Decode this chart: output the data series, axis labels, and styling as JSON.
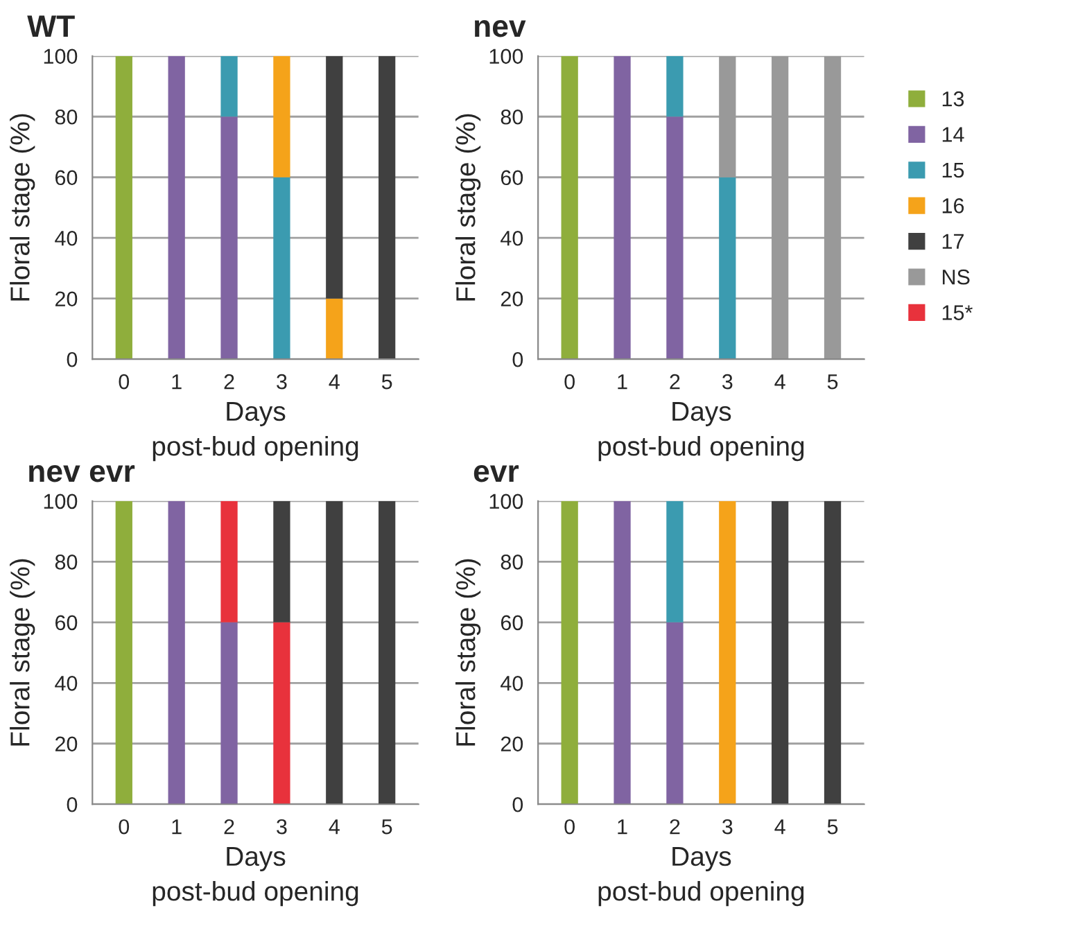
{
  "chart_data": [
    {
      "type": "bar",
      "title": "WT",
      "xlabel": "Days\npost-bud opening",
      "ylabel": "Floral stage (%)",
      "categories": [
        "0",
        "1",
        "2",
        "3",
        "4",
        "5"
      ],
      "stacked": true,
      "ylim": [
        0,
        100
      ],
      "yticks": [
        0,
        20,
        40,
        60,
        80,
        100
      ],
      "grid": "y",
      "legend": false,
      "series": [
        {
          "color": "#8fae3c",
          "values": [
            100,
            null,
            null,
            null,
            null,
            null
          ]
        },
        {
          "color": "#8064a2",
          "values": [
            null,
            100,
            80,
            null,
            null,
            null
          ]
        },
        {
          "color": "#3b9bb0",
          "values": [
            null,
            null,
            20,
            60,
            null,
            null
          ]
        },
        {
          "color": "#f5a31a",
          "values": [
            null,
            null,
            null,
            40,
            20,
            null
          ]
        },
        {
          "color": "#404040",
          "values": [
            null,
            null,
            null,
            null,
            80,
            100
          ]
        }
      ]
    },
    {
      "type": "bar",
      "title": "nev",
      "xlabel": "Days\npost-bud opening",
      "ylabel": "Floral stage (%)",
      "categories": [
        "0",
        "1",
        "2",
        "3",
        "4",
        "5"
      ],
      "stacked": true,
      "ylim": [
        0,
        100
      ],
      "yticks": [
        0,
        20,
        40,
        60,
        80,
        100
      ],
      "grid": "y",
      "legend": "right",
      "series": [
        {
          "name": "13",
          "color": "#8fae3c",
          "values": [
            100,
            null,
            null,
            null,
            null,
            null
          ]
        },
        {
          "name": "14",
          "color": "#8064a2",
          "values": [
            null,
            100,
            80,
            null,
            null,
            null
          ]
        },
        {
          "name": "15",
          "color": "#3b9bb0",
          "values": [
            null,
            null,
            20,
            60,
            null,
            null
          ]
        },
        {
          "name": "16",
          "color": "#f5a31a",
          "values": [
            null,
            null,
            null,
            null,
            null,
            null
          ]
        },
        {
          "name": "17",
          "color": "#404040",
          "values": [
            null,
            null,
            null,
            null,
            null,
            null
          ]
        },
        {
          "name": "NS",
          "color": "#999999",
          "values": [
            null,
            null,
            null,
            40,
            100,
            100
          ]
        },
        {
          "name": "15*",
          "color": "#e8323c",
          "values": [
            null,
            null,
            null,
            null,
            null,
            null
          ]
        }
      ]
    },
    {
      "type": "bar",
      "title": "nev evr",
      "xlabel": "Days\npost-bud opening",
      "ylabel": "Floral stage (%)",
      "categories": [
        "0",
        "1",
        "2",
        "3",
        "4",
        "5"
      ],
      "stacked": true,
      "ylim": [
        0,
        100
      ],
      "yticks": [
        0,
        20,
        40,
        60,
        80,
        100
      ],
      "grid": "y",
      "legend": false,
      "series": [
        {
          "color": "#8fae3c",
          "values": [
            100,
            null,
            null,
            null,
            null,
            null
          ]
        },
        {
          "color": "#8064a2",
          "values": [
            null,
            100,
            60,
            null,
            null,
            null
          ]
        },
        {
          "color": "#e8323c",
          "values": [
            null,
            null,
            40,
            60,
            null,
            null
          ]
        },
        {
          "color": "#404040",
          "values": [
            null,
            null,
            null,
            40,
            100,
            100
          ]
        }
      ]
    },
    {
      "type": "bar",
      "title": "evr",
      "xlabel": "Days\npost-bud opening",
      "ylabel": "Floral stage (%)",
      "categories": [
        "0",
        "1",
        "2",
        "3",
        "4",
        "5"
      ],
      "stacked": true,
      "ylim": [
        0,
        100
      ],
      "yticks": [
        0,
        20,
        40,
        60,
        80,
        100
      ],
      "grid": "y",
      "legend": false,
      "series": [
        {
          "color": "#8fae3c",
          "values": [
            100,
            null,
            null,
            null,
            null,
            null
          ]
        },
        {
          "color": "#8064a2",
          "values": [
            null,
            100,
            60,
            null,
            null,
            null
          ]
        },
        {
          "color": "#3b9bb0",
          "values": [
            null,
            null,
            40,
            null,
            null,
            null
          ]
        },
        {
          "color": "#f5a31a",
          "values": [
            null,
            null,
            null,
            100,
            null,
            null
          ]
        },
        {
          "color": "#404040",
          "values": [
            null,
            null,
            null,
            null,
            100,
            100
          ]
        }
      ]
    }
  ]
}
